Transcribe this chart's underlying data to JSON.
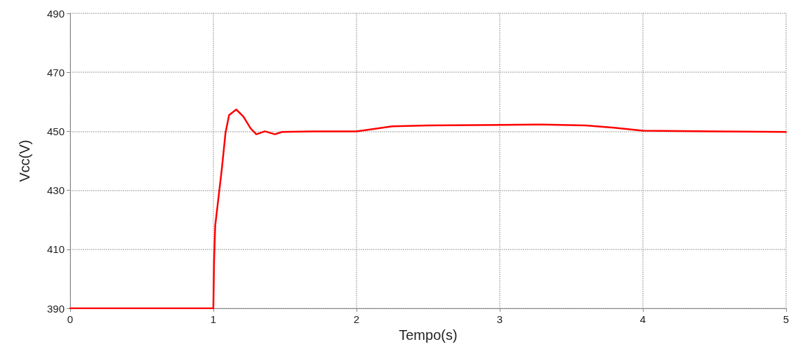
{
  "chart_data": {
    "type": "line",
    "xlabel": "Tempo(s)",
    "ylabel": "Vcc(V)",
    "xlim": [
      0,
      5
    ],
    "xticks": [
      0,
      1,
      2,
      3,
      4,
      5
    ],
    "ylim": [
      390,
      490
    ],
    "yticks": [
      390,
      410,
      430,
      450,
      470,
      490
    ],
    "grid": true,
    "marker": "none",
    "line_style": "solid",
    "series": [
      {
        "color": "#ff0000",
        "x": [
          0,
          0.5,
          1.0,
          1.005,
          1.013,
          1.037,
          1.06,
          1.085,
          1.11,
          1.16,
          1.21,
          1.26,
          1.3,
          1.36,
          1.43,
          1.48,
          1.7,
          2.0,
          2.25,
          2.5,
          3.0,
          3.3,
          3.6,
          3.8,
          4.0,
          4.5,
          5.0
        ],
        "values": [
          390,
          390,
          390,
          406,
          418,
          428,
          437.6,
          449.5,
          455.5,
          457.4,
          455,
          451,
          449,
          450,
          449,
          449.8,
          450,
          450,
          451.7,
          452,
          452.2,
          452.3,
          452,
          451.2,
          450.2,
          450,
          449.8
        ]
      }
    ]
  }
}
